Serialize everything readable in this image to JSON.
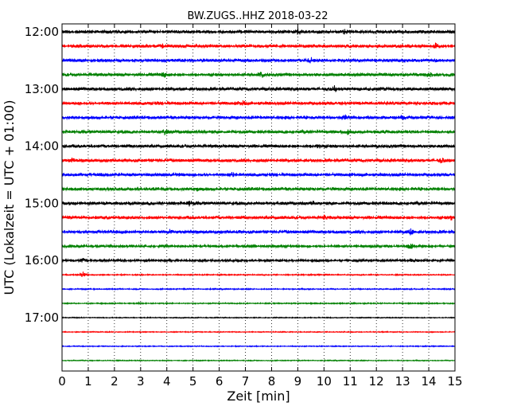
{
  "chart_data": {
    "type": "line",
    "title": "BW.ZUGS..HHZ 2018-03-22",
    "xlabel": "Zeit  [min]",
    "ylabel": "UTC (Lokalzeit = UTC + 01:00)",
    "xlim": [
      0,
      15
    ],
    "x_ticks": [
      "0",
      "1",
      "2",
      "3",
      "4",
      "5",
      "6",
      "7",
      "8",
      "9",
      "10",
      "11",
      "12",
      "13",
      "14",
      "15"
    ],
    "y_ticks": [
      "12:00",
      "13:00",
      "14:00",
      "15:00",
      "16:00",
      "17:00"
    ],
    "grid": "vertical-dotted",
    "trace_colors": [
      "#000000",
      "#ff0000",
      "#0000ff",
      "#008000"
    ],
    "traces": [
      {
        "start": "12:00",
        "amplitude": 4,
        "events": [
          {
            "minute": 9.0,
            "amp": 7
          },
          {
            "minute": 10.8,
            "amp": 5
          }
        ]
      },
      {
        "start": "12:15",
        "amplitude": 4,
        "events": [
          {
            "minute": 3.8,
            "amp": 7
          },
          {
            "minute": 14.3,
            "amp": 8
          }
        ]
      },
      {
        "start": "12:30",
        "amplitude": 4,
        "events": [
          {
            "minute": 9.5,
            "amp": 5
          },
          {
            "minute": 13.1,
            "amp": 4
          }
        ]
      },
      {
        "start": "12:45",
        "amplitude": 4,
        "events": [
          {
            "minute": 3.9,
            "amp": 6
          },
          {
            "minute": 7.6,
            "amp": 6
          },
          {
            "minute": 14.0,
            "amp": 5
          }
        ]
      },
      {
        "start": "13:00",
        "amplitude": 4,
        "events": [
          {
            "minute": 10.4,
            "amp": 6
          },
          {
            "minute": 12.3,
            "amp": 4
          }
        ]
      },
      {
        "start": "13:15",
        "amplitude": 4,
        "events": [
          {
            "minute": 6.9,
            "amp": 5
          }
        ]
      },
      {
        "start": "13:30",
        "amplitude": 4,
        "events": [
          {
            "minute": 10.8,
            "amp": 5
          },
          {
            "minute": 13.0,
            "amp": 4
          }
        ]
      },
      {
        "start": "13:45",
        "amplitude": 4,
        "events": [
          {
            "minute": 3.9,
            "amp": 6
          },
          {
            "minute": 10.9,
            "amp": 4
          }
        ]
      },
      {
        "start": "14:00",
        "amplitude": 4,
        "events": [
          {
            "minute": 9.8,
            "amp": 4
          }
        ]
      },
      {
        "start": "14:15",
        "amplitude": 4,
        "events": [
          {
            "minute": 0.4,
            "amp": 6
          },
          {
            "minute": 14.5,
            "amp": 5
          }
        ]
      },
      {
        "start": "14:30",
        "amplitude": 4,
        "events": [
          {
            "minute": 4.5,
            "amp": 4
          },
          {
            "minute": 6.5,
            "amp": 4
          }
        ]
      },
      {
        "start": "14:45",
        "amplitude": 4,
        "events": [
          {
            "minute": 5.1,
            "amp": 6
          }
        ]
      },
      {
        "start": "15:00",
        "amplitude": 4,
        "events": [
          {
            "minute": 4.9,
            "amp": 5
          },
          {
            "minute": 9.6,
            "amp": 5
          }
        ]
      },
      {
        "start": "15:15",
        "amplitude": 4,
        "events": [
          {
            "minute": 10.0,
            "amp": 5
          },
          {
            "minute": 14.9,
            "amp": 5
          }
        ]
      },
      {
        "start": "15:30",
        "amplitude": 4,
        "events": [
          {
            "minute": 4.1,
            "amp": 5
          },
          {
            "minute": 13.3,
            "amp": 8
          }
        ]
      },
      {
        "start": "15:45",
        "amplitude": 3,
        "events": [
          {
            "minute": 13.3,
            "amp": 8
          }
        ]
      },
      {
        "start": "16:00",
        "amplitude": 3,
        "events": [
          {
            "minute": 0.8,
            "amp": 4
          },
          {
            "minute": 13.4,
            "amp": 4
          }
        ]
      },
      {
        "start": "16:15",
        "amplitude": 1.5,
        "events": [
          {
            "minute": 0.8,
            "amp": 7
          }
        ]
      },
      {
        "start": "16:30",
        "amplitude": 1.5,
        "events": []
      },
      {
        "start": "16:45",
        "amplitude": 1.5,
        "events": [
          {
            "minute": 2.9,
            "amp": 4
          }
        ]
      },
      {
        "start": "17:00",
        "amplitude": 1.2,
        "events": []
      },
      {
        "start": "17:15",
        "amplitude": 1.2,
        "events": []
      },
      {
        "start": "17:30",
        "amplitude": 1.2,
        "events": []
      },
      {
        "start": "17:45",
        "amplitude": 1.2,
        "events": []
      }
    ]
  }
}
